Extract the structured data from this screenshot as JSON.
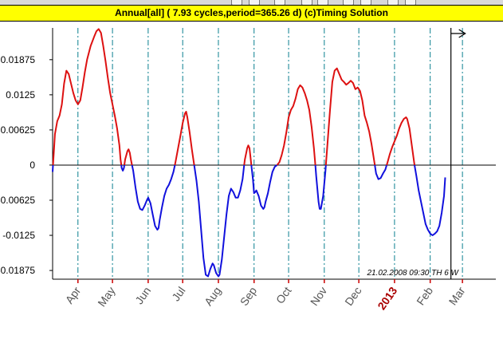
{
  "window": {
    "title": "Annual[all]  ( 7.93 cycles,period=365.26 d)    (c)Timing  Solution"
  },
  "chart_data": {
    "type": "line",
    "title": "Annual[all]  ( 7.93 cycles,period=365.26 d)    (c)Timing  Solution",
    "y_ticks": [
      {
        "value": 0.01875,
        "label": "0.01875"
      },
      {
        "value": 0.0125,
        "label": "0.0125"
      },
      {
        "value": 0.00625,
        "label": "0.00625"
      },
      {
        "value": 0,
        "label": "0"
      },
      {
        "value": -0.00625,
        "label": "-0.00625"
      },
      {
        "value": -0.0125,
        "label": "-0.0125"
      },
      {
        "value": -0.01875,
        "label": "-0.01875"
      }
    ],
    "ylim": [
      -0.0203,
      0.0244
    ],
    "x_label_format": "day of year, starting Mar 10",
    "xlim": [
      0,
      385
    ],
    "month_ticks": [
      {
        "label": "Apr",
        "x": 22
      },
      {
        "label": "May",
        "x": 52
      },
      {
        "label": "Jun",
        "x": 83
      },
      {
        "label": "Jul",
        "x": 113
      },
      {
        "label": "Aug",
        "x": 144
      },
      {
        "label": "Sep",
        "x": 175
      },
      {
        "label": "Oct",
        "x": 205
      },
      {
        "label": "Nov",
        "x": 236
      },
      {
        "label": "Dec",
        "x": 266
      },
      {
        "label": "2013",
        "x": 297,
        "highlight": true
      },
      {
        "label": "Feb",
        "x": 328
      },
      {
        "label": "Mar",
        "x": 356
      }
    ],
    "current_marker_x": 346,
    "annotation": "21.02.2008  09:30  TH   6  W",
    "positive_color": "#dd1111",
    "negative_color": "#1111dd",
    "points": [
      [
        0,
        -0.0012
      ],
      [
        1,
        0.002
      ],
      [
        2,
        0.0055
      ],
      [
        4,
        0.0078
      ],
      [
        6,
        0.0088
      ],
      [
        8,
        0.0108
      ],
      [
        10,
        0.0145
      ],
      [
        12,
        0.0168
      ],
      [
        14,
        0.0162
      ],
      [
        16,
        0.0145
      ],
      [
        18,
        0.0128
      ],
      [
        20,
        0.0115
      ],
      [
        22,
        0.0108
      ],
      [
        24,
        0.0115
      ],
      [
        26,
        0.0138
      ],
      [
        28,
        0.0165
      ],
      [
        30,
        0.0188
      ],
      [
        33,
        0.0212
      ],
      [
        36,
        0.0228
      ],
      [
        38,
        0.0238
      ],
      [
        40,
        0.0242
      ],
      [
        42,
        0.0235
      ],
      [
        44,
        0.0212
      ],
      [
        46,
        0.0185
      ],
      [
        48,
        0.0155
      ],
      [
        50,
        0.0128
      ],
      [
        52,
        0.0108
      ],
      [
        54,
        0.0088
      ],
      [
        56,
        0.0065
      ],
      [
        58,
        0.0035
      ],
      [
        59,
        0.001
      ],
      [
        60,
        -0.0005
      ],
      [
        61,
        -0.001
      ],
      [
        62,
        -0.0005
      ],
      [
        63,
        0.001
      ],
      [
        65,
        0.0025
      ],
      [
        66,
        0.0028
      ],
      [
        67,
        0.0022
      ],
      [
        68,
        0.001
      ],
      [
        70,
        -0.001
      ],
      [
        72,
        -0.004
      ],
      [
        74,
        -0.0065
      ],
      [
        76,
        -0.0078
      ],
      [
        78,
        -0.008
      ],
      [
        80,
        -0.0072
      ],
      [
        82,
        -0.0062
      ],
      [
        83,
        -0.0058
      ],
      [
        85,
        -0.0068
      ],
      [
        87,
        -0.0088
      ],
      [
        89,
        -0.0108
      ],
      [
        91,
        -0.0115
      ],
      [
        92,
        -0.0112
      ],
      [
        93,
        -0.0098
      ],
      [
        95,
        -0.0075
      ],
      [
        97,
        -0.0055
      ],
      [
        99,
        -0.0042
      ],
      [
        101,
        -0.0035
      ],
      [
        103,
        -0.0025
      ],
      [
        105,
        -0.0012
      ],
      [
        106,
        -0.0002
      ],
      [
        107,
        0.0008
      ],
      [
        109,
        0.003
      ],
      [
        111,
        0.0052
      ],
      [
        113,
        0.0075
      ],
      [
        115,
        0.0092
      ],
      [
        116,
        0.0095
      ],
      [
        117,
        0.0085
      ],
      [
        119,
        0.0058
      ],
      [
        121,
        0.0028
      ],
      [
        123,
        0
      ],
      [
        125,
        -0.0028
      ],
      [
        127,
        -0.0065
      ],
      [
        129,
        -0.0115
      ],
      [
        131,
        -0.0165
      ],
      [
        133,
        -0.0195
      ],
      [
        135,
        -0.0198
      ],
      [
        137,
        -0.0185
      ],
      [
        139,
        -0.0175
      ],
      [
        140,
        -0.0178
      ],
      [
        142,
        -0.0192
      ],
      [
        144,
        -0.0198
      ],
      [
        145,
        -0.0195
      ],
      [
        147,
        -0.0168
      ],
      [
        149,
        -0.0128
      ],
      [
        151,
        -0.0088
      ],
      [
        153,
        -0.0055
      ],
      [
        155,
        -0.0042
      ],
      [
        157,
        -0.0048
      ],
      [
        159,
        -0.0058
      ],
      [
        161,
        -0.0058
      ],
      [
        163,
        -0.0045
      ],
      [
        165,
        -0.0025
      ],
      [
        167,
        0.001
      ],
      [
        169,
        0.003
      ],
      [
        170,
        0.0035
      ],
      [
        171,
        0.003
      ],
      [
        172,
        0.0012
      ],
      [
        174,
        -0.0025
      ],
      [
        175,
        -0.005
      ],
      [
        176,
        -0.0048
      ],
      [
        177,
        -0.0045
      ],
      [
        179,
        -0.0055
      ],
      [
        181,
        -0.0072
      ],
      [
        183,
        -0.0078
      ],
      [
        184,
        -0.0075
      ],
      [
        185,
        -0.0065
      ],
      [
        187,
        -0.005
      ],
      [
        189,
        -0.003
      ],
      [
        191,
        -0.0012
      ],
      [
        193,
        -0.0003
      ],
      [
        195,
        0
      ],
      [
        197,
        0.0005
      ],
      [
        199,
        0.0018
      ],
      [
        201,
        0.0035
      ],
      [
        203,
        0.0058
      ],
      [
        205,
        0.0085
      ],
      [
        207,
        0.0098
      ],
      [
        209,
        0.0105
      ],
      [
        211,
        0.0118
      ],
      [
        213,
        0.0135
      ],
      [
        215,
        0.0142
      ],
      [
        217,
        0.0138
      ],
      [
        219,
        0.0128
      ],
      [
        221,
        0.0115
      ],
      [
        223,
        0.0098
      ],
      [
        225,
        0.0068
      ],
      [
        227,
        0.003
      ],
      [
        229,
        -0.002
      ],
      [
        231,
        -0.0065
      ],
      [
        232,
        -0.0078
      ],
      [
        233,
        -0.0078
      ],
      [
        235,
        -0.0055
      ],
      [
        237,
        -0.001
      ],
      [
        239,
        0.0045
      ],
      [
        241,
        0.0098
      ],
      [
        243,
        0.0148
      ],
      [
        245,
        0.0168
      ],
      [
        247,
        0.0172
      ],
      [
        249,
        0.0162
      ],
      [
        251,
        0.0152
      ],
      [
        253,
        0.0148
      ],
      [
        255,
        0.0143
      ],
      [
        257,
        0.0146
      ],
      [
        259,
        0.015
      ],
      [
        261,
        0.0146
      ],
      [
        263,
        0.0135
      ],
      [
        265,
        0.0138
      ],
      [
        267,
        0.0132
      ],
      [
        269,
        0.0115
      ],
      [
        271,
        0.0088
      ],
      [
        273,
        0.0075
      ],
      [
        275,
        0.006
      ],
      [
        277,
        0.0038
      ],
      [
        279,
        0.0012
      ],
      [
        281,
        -0.0015
      ],
      [
        283,
        -0.0025
      ],
      [
        285,
        -0.0023
      ],
      [
        287,
        -0.0015
      ],
      [
        289,
        -0.0008
      ],
      [
        291,
        0.0005
      ],
      [
        293,
        0.002
      ],
      [
        295,
        0.0032
      ],
      [
        297,
        0.0042
      ],
      [
        299,
        0.0052
      ],
      [
        301,
        0.0065
      ],
      [
        303,
        0.0075
      ],
      [
        305,
        0.0082
      ],
      [
        307,
        0.0085
      ],
      [
        308,
        0.0082
      ],
      [
        310,
        0.0065
      ],
      [
        312,
        0.0035
      ],
      [
        314,
        0.0005
      ],
      [
        316,
        -0.002
      ],
      [
        318,
        -0.0045
      ],
      [
        320,
        -0.0065
      ],
      [
        322,
        -0.0085
      ],
      [
        324,
        -0.0105
      ],
      [
        326,
        -0.0115
      ],
      [
        328,
        -0.0122
      ],
      [
        330,
        -0.0125
      ],
      [
        332,
        -0.0122
      ],
      [
        334,
        -0.0118
      ],
      [
        336,
        -0.0108
      ],
      [
        338,
        -0.0085
      ],
      [
        340,
        -0.0055
      ],
      [
        341,
        -0.0022
      ]
    ]
  }
}
